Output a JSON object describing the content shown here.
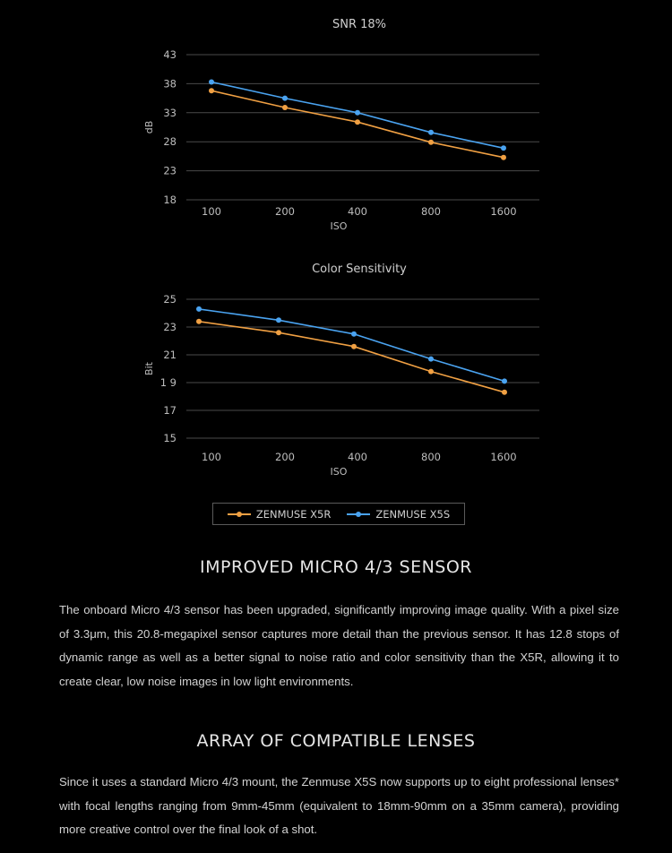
{
  "chart_data": [
    {
      "type": "line",
      "title": "SNR 18%",
      "xlabel": "ISO",
      "ylabel": "dB",
      "categories": [
        "100",
        "200",
        "400",
        "800",
        "1600"
      ],
      "yticks": [
        "43",
        "38",
        "33",
        "28",
        "23",
        "18"
      ],
      "ylim": [
        18,
        43
      ],
      "grid": true,
      "series": [
        {
          "name": "ZENMUSE X5R",
          "color": "#f0a043",
          "values": [
            36.8,
            33.9,
            31.4,
            27.9,
            25.3
          ]
        },
        {
          "name": "ZENMUSE X5S",
          "color": "#4aa3f0",
          "values": [
            38.3,
            35.5,
            33.0,
            29.6,
            26.9
          ]
        }
      ]
    },
    {
      "type": "line",
      "title": "Color Sensitivity",
      "xlabel": "ISO",
      "ylabel": "Bit",
      "categories": [
        "100",
        "200",
        "400",
        "800",
        "1600"
      ],
      "yticks": [
        "25",
        "23",
        "21",
        "1 9",
        "17",
        "15"
      ],
      "ylim": [
        15,
        25
      ],
      "grid": true,
      "series": [
        {
          "name": "ZENMUSE X5R",
          "color": "#f0a043",
          "values": [
            23.4,
            22.6,
            21.6,
            19.8,
            18.3
          ]
        },
        {
          "name": "ZENMUSE X5S",
          "color": "#4aa3f0",
          "values": [
            24.3,
            23.5,
            22.5,
            20.7,
            19.1
          ]
        }
      ]
    }
  ],
  "legend": {
    "placement": "bottom-center",
    "items": [
      {
        "label": "ZENMUSE X5R",
        "color": "#f0a043"
      },
      {
        "label": "ZENMUSE X5S",
        "color": "#4aa3f0"
      }
    ]
  },
  "sections": [
    {
      "heading": "IMPROVED MICRO 4/3 SENSOR",
      "body": "The onboard Micro 4/3 sensor has been upgraded, significantly improving image quality. With a pixel size of 3.3μm, this 20.8-megapixel sensor captures more detail than the previous sensor. It has 12.8 stops of dynamic range as well as a better signal to noise ratio and color sensitivity than the X5R, allowing it to create clear, low noise images in low light environments."
    },
    {
      "heading": "ARRAY OF COMPATIBLE LENSES",
      "body": "Since it uses a standard Micro 4/3 mount, the Zenmuse X5S now supports up to eight professional lenses* with focal lengths ranging from 9mm-45mm (equivalent to 18mm-90mm on a 35mm camera), providing more creative control over the final look of a shot."
    }
  ]
}
